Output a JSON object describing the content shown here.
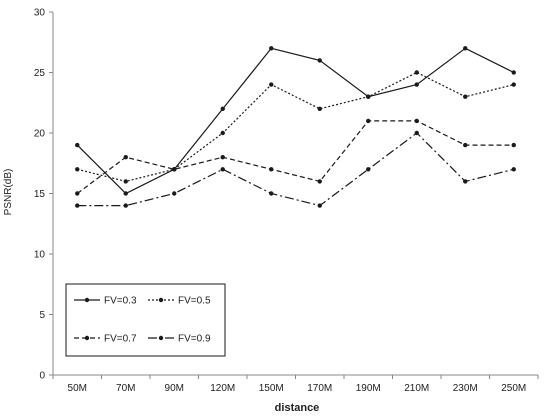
{
  "chart_data": {
    "type": "line",
    "title": "",
    "xlabel": "distance",
    "ylabel": "PSNR(dB)",
    "ylim": [
      0,
      30
    ],
    "yticks": [
      0,
      5,
      10,
      15,
      20,
      25,
      30
    ],
    "grid": false,
    "legend_position": "bottom-left",
    "categories": [
      "50M",
      "70M",
      "90M",
      "120M",
      "150M",
      "170M",
      "190M",
      "210M",
      "230M",
      "250M"
    ],
    "series": [
      {
        "name": "FV=0.3",
        "style": "solid",
        "values": [
          19,
          15,
          17,
          22,
          27,
          26,
          23,
          24,
          27,
          25
        ]
      },
      {
        "name": "FV=0.5",
        "style": "dotted",
        "values": [
          17,
          16,
          17,
          20,
          24,
          22,
          23,
          25,
          23,
          24
        ]
      },
      {
        "name": "FV=0.7",
        "style": "dashed",
        "values": [
          15,
          18,
          17,
          18,
          17,
          16,
          21,
          21,
          19,
          19
        ]
      },
      {
        "name": "FV=0.9",
        "style": "dash-dot",
        "values": [
          14,
          14,
          15,
          17,
          15,
          14,
          17,
          20,
          16,
          17
        ]
      }
    ],
    "colors": {
      "line": "#1a1a1a",
      "axis": "#888888"
    }
  }
}
